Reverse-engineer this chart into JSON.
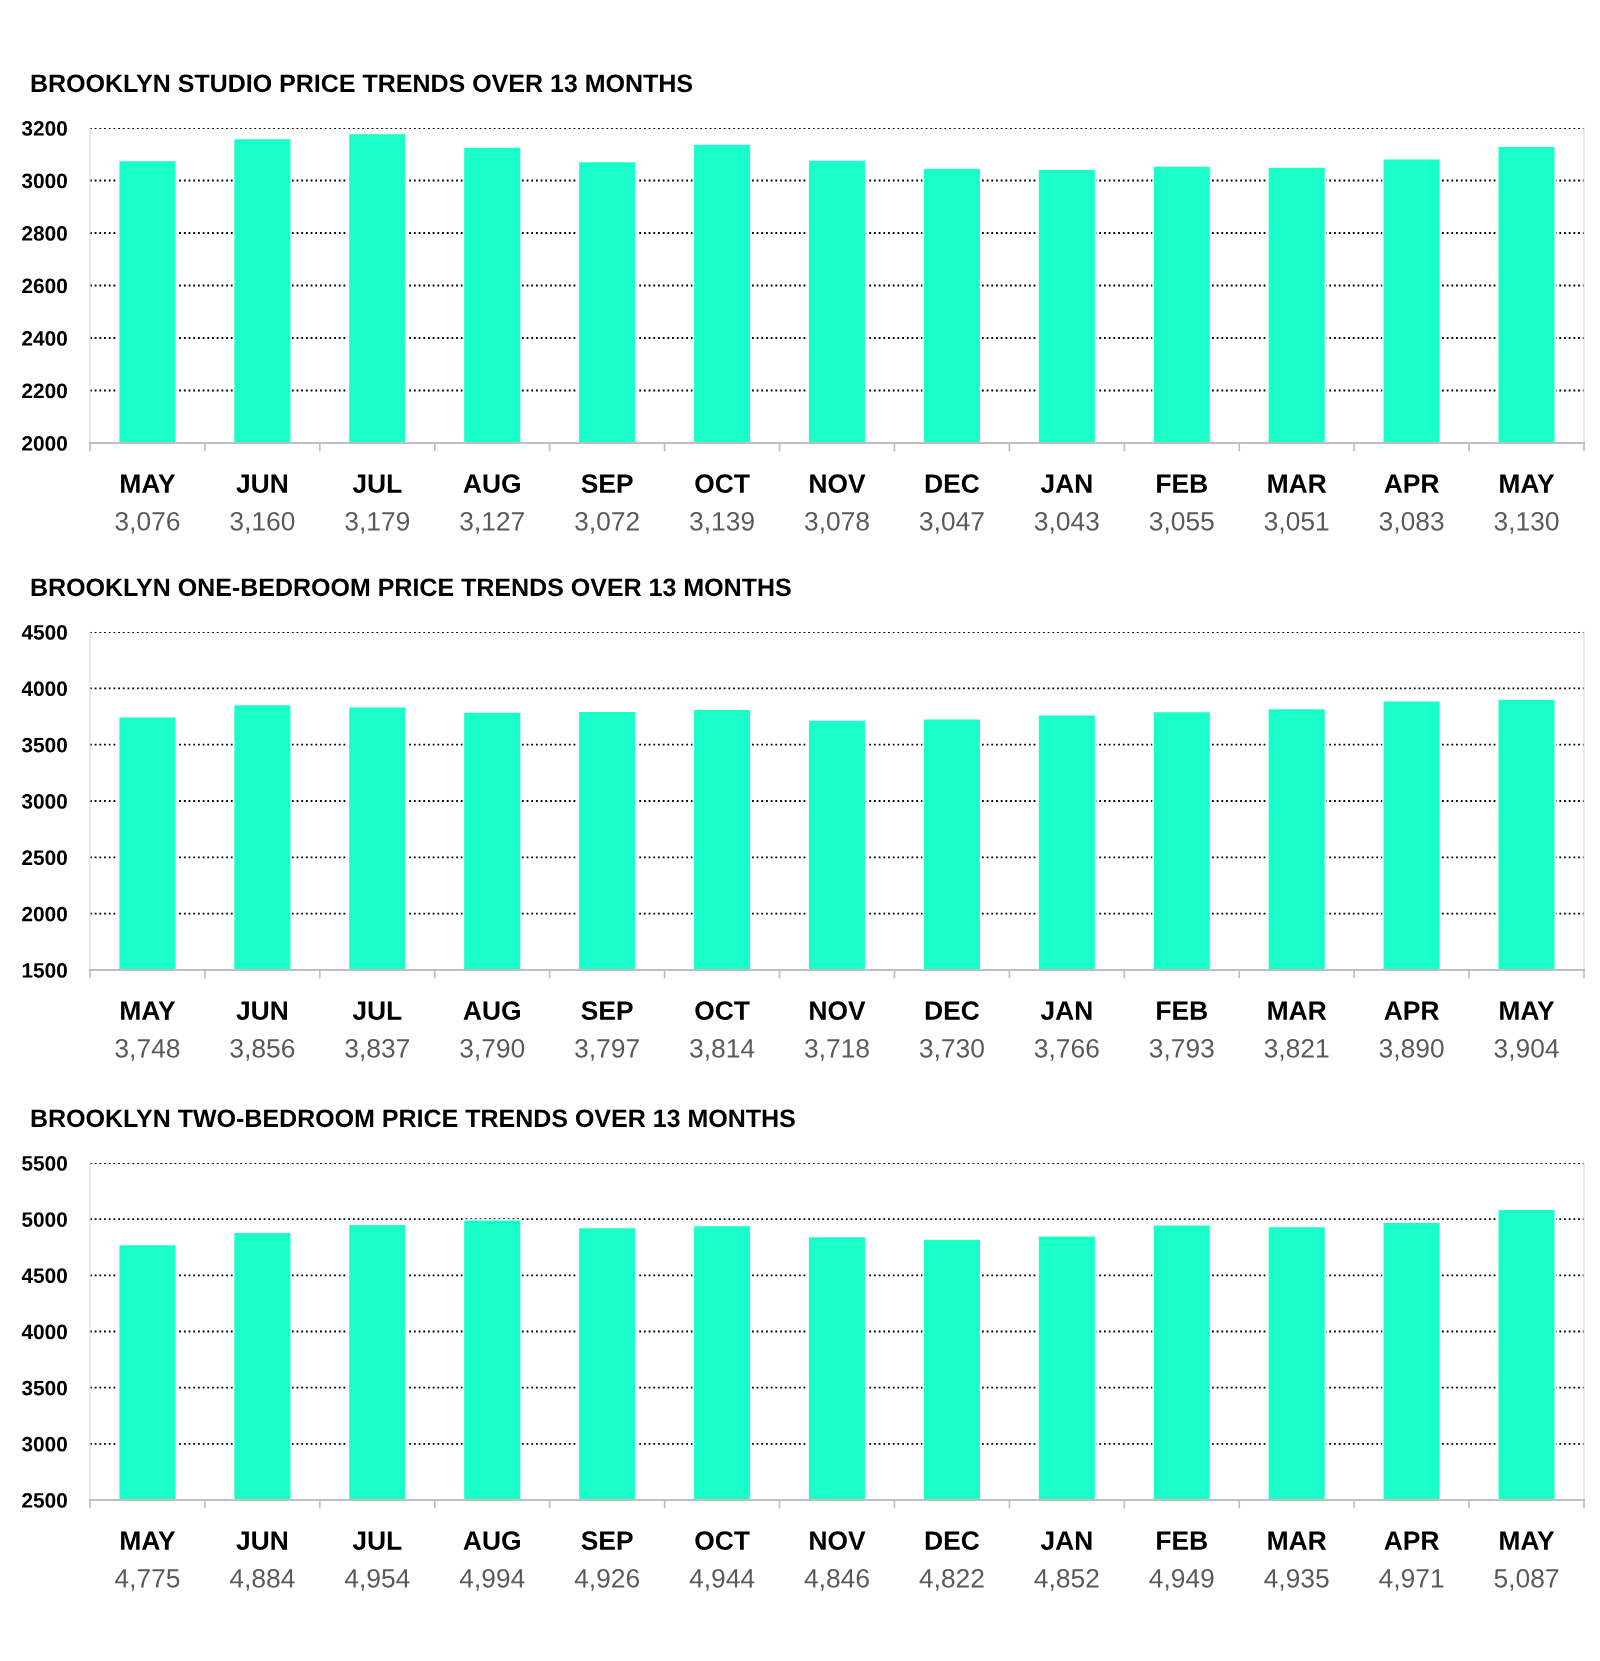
{
  "chart_data": [
    {
      "type": "bar",
      "title": "BROOKLYN STUDIO PRICE TRENDS OVER 13 MONTHS",
      "categories": [
        "MAY",
        "JUN",
        "JUL",
        "AUG",
        "SEP",
        "OCT",
        "NOV",
        "DEC",
        "JAN",
        "FEB",
        "MAR",
        "APR",
        "MAY"
      ],
      "values": [
        3076,
        3160,
        3179,
        3127,
        3072,
        3139,
        3078,
        3047,
        3043,
        3055,
        3051,
        3083,
        3130
      ],
      "value_labels": [
        "3,076",
        "3,160",
        "3,179",
        "3,127",
        "3,072",
        "3,139",
        "3,078",
        "3,047",
        "3,043",
        "3,055",
        "3,051",
        "3,083",
        "3,130"
      ],
      "color": "#1affca",
      "ylim": [
        2000,
        3200
      ],
      "yticks": [
        2000,
        2200,
        2400,
        2600,
        2800,
        3000,
        3200
      ],
      "grid": "y"
    },
    {
      "type": "bar",
      "title": "BROOKLYN ONE-BEDROOM PRICE TRENDS OVER 13 MONTHS",
      "categories": [
        "MAY",
        "JUN",
        "JUL",
        "AUG",
        "SEP",
        "OCT",
        "NOV",
        "DEC",
        "JAN",
        "FEB",
        "MAR",
        "APR",
        "MAY"
      ],
      "values": [
        3748,
        3856,
        3837,
        3790,
        3797,
        3814,
        3718,
        3730,
        3766,
        3793,
        3821,
        3890,
        3904
      ],
      "value_labels": [
        "3,748",
        "3,856",
        "3,837",
        "3,790",
        "3,797",
        "3,814",
        "3,718",
        "3,730",
        "3,766",
        "3,793",
        "3,821",
        "3,890",
        "3,904"
      ],
      "color": "#1affca",
      "ylim": [
        1500,
        4500
      ],
      "yticks": [
        1500,
        2000,
        2500,
        3000,
        3500,
        4000,
        4500
      ],
      "grid": "y"
    },
    {
      "type": "bar",
      "title": "BROOKLYN TWO-BEDROOM PRICE TRENDS OVER 13 MONTHS",
      "categories": [
        "MAY",
        "JUN",
        "JUL",
        "AUG",
        "SEP",
        "OCT",
        "NOV",
        "DEC",
        "JAN",
        "FEB",
        "MAR",
        "APR",
        "MAY"
      ],
      "values": [
        4775,
        4884,
        4954,
        4994,
        4926,
        4944,
        4846,
        4822,
        4852,
        4949,
        4935,
        4971,
        5087
      ],
      "value_labels": [
        "4,775",
        "4,884",
        "4,954",
        "4,994",
        "4,926",
        "4,944",
        "4,846",
        "4,822",
        "4,852",
        "4,949",
        "4,935",
        "4,971",
        "5,087"
      ],
      "color": "#1affca",
      "ylim": [
        2500,
        5500
      ],
      "yticks": [
        2500,
        3000,
        3500,
        4000,
        4500,
        5000,
        5500
      ],
      "grid": "y"
    }
  ]
}
